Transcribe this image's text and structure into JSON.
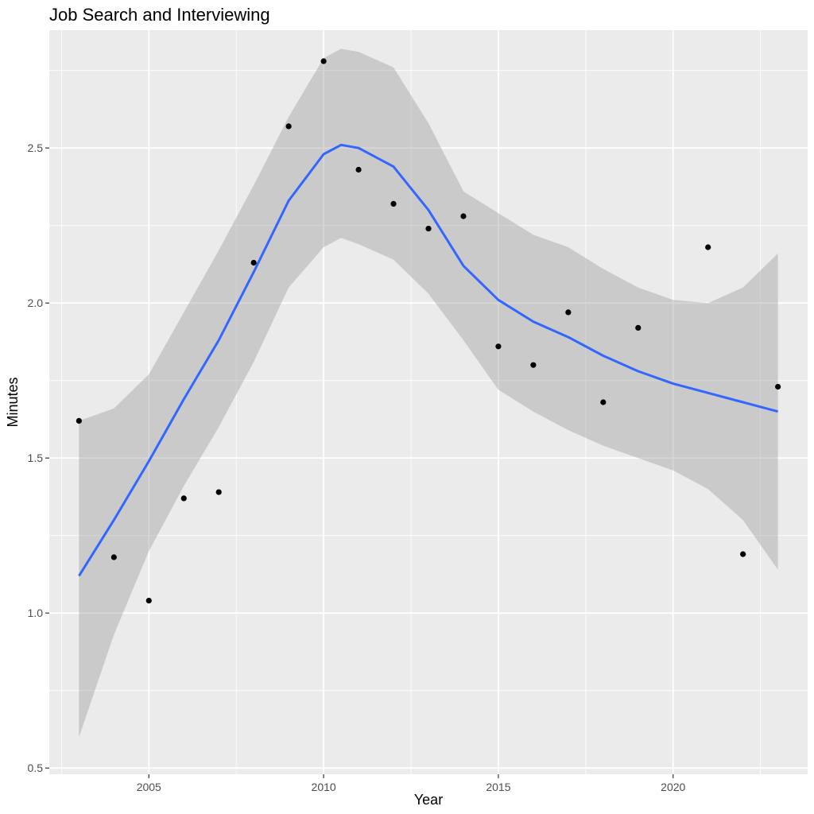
{
  "chart_data": {
    "type": "scatter",
    "title": "Job Search and Interviewing",
    "xlabel": "Year",
    "ylabel": "Minutes",
    "xlim": [
      2002.15,
      2023.85
    ],
    "ylim": [
      0.48,
      2.88
    ],
    "x_ticks": [
      2005,
      2010,
      2015,
      2020
    ],
    "y_ticks": [
      0.5,
      1.0,
      1.5,
      2.0,
      2.5
    ],
    "x_tick_labels": [
      "2005",
      "2010",
      "2015",
      "2020"
    ],
    "y_tick_labels": [
      "0.5",
      "1.0",
      "1.5",
      "2.0",
      "2.5"
    ],
    "grid": true,
    "legend": "none",
    "points": {
      "x": [
        2003,
        2004,
        2005,
        2006,
        2007,
        2008,
        2009,
        2010,
        2011,
        2012,
        2013,
        2014,
        2015,
        2016,
        2017,
        2018,
        2019,
        2021,
        2022,
        2023
      ],
      "y": [
        1.62,
        1.18,
        1.04,
        1.37,
        1.39,
        2.13,
        2.57,
        2.78,
        2.43,
        2.32,
        2.24,
        2.28,
        1.86,
        1.8,
        1.97,
        1.68,
        1.92,
        2.18,
        1.19,
        1.73
      ]
    },
    "smooth": {
      "x": [
        2003,
        2004,
        2005,
        2006,
        2007,
        2008,
        2009,
        2010,
        2010.5,
        2011,
        2012,
        2013,
        2014,
        2015,
        2016,
        2017,
        2018,
        2019,
        2020,
        2021,
        2022,
        2023
      ],
      "y": [
        1.12,
        1.3,
        1.49,
        1.69,
        1.88,
        2.1,
        2.33,
        2.48,
        2.51,
        2.5,
        2.44,
        2.3,
        2.12,
        2.01,
        1.94,
        1.89,
        1.83,
        1.78,
        1.74,
        1.71,
        1.68,
        1.65
      ],
      "upper": [
        1.62,
        1.66,
        1.77,
        1.97,
        2.17,
        2.38,
        2.6,
        2.79,
        2.82,
        2.81,
        2.76,
        2.58,
        2.36,
        2.29,
        2.22,
        2.18,
        2.11,
        2.05,
        2.01,
        2.0,
        2.05,
        2.16
      ],
      "lower": [
        0.6,
        0.93,
        1.2,
        1.41,
        1.6,
        1.81,
        2.05,
        2.18,
        2.21,
        2.19,
        2.14,
        2.03,
        1.88,
        1.72,
        1.65,
        1.59,
        1.54,
        1.5,
        1.46,
        1.4,
        1.3,
        1.14
      ],
      "color": "#3366FF",
      "band_color": "#999999"
    },
    "colors": {
      "panel": "#EBEBEB",
      "grid": "#FFFFFF",
      "point": "#000000"
    }
  }
}
